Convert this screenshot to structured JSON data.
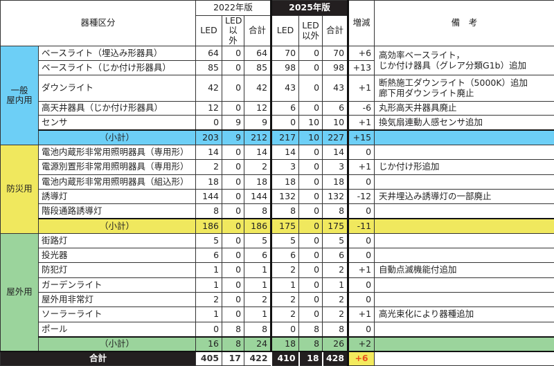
{
  "header": {
    "category": "器種区分",
    "year_2022": "2022年版",
    "year_2025": "2025年版",
    "led": "LED",
    "non_led": "LED\n以外",
    "total": "合計",
    "diff": "増減",
    "remarks": "備　考"
  },
  "colors": {
    "general": "#6dcff6",
    "disaster": "#f0e85e",
    "outdoor": "#9bd49c",
    "total_bg": "#231f20",
    "total_diff_bg": "#f3ea5d",
    "total_diff_text": "#e8501c"
  },
  "groups": [
    {
      "label": "一般\n屋内用",
      "color_key": "general",
      "rows": [
        {
          "name": "ベースライト（埋込み形器具）",
          "values": [
            64,
            0,
            64,
            70,
            0,
            70
          ],
          "diff": "+6",
          "remark": "高効率ベースライト，\nじか付け器具（グレア分類G1b）追加",
          "remark_rows": 2
        },
        {
          "name": "ベースライト（じか付け形器具）",
          "values": [
            85,
            0,
            85,
            98,
            0,
            98
          ],
          "diff": "+13"
        },
        {
          "name": "ダウンライト",
          "values": [
            42,
            0,
            42,
            43,
            0,
            43
          ],
          "diff": "+1",
          "remark": "断熱施工ダウンライト（5000K）追加\n廊下用ダウンライト廃止"
        },
        {
          "name": "高天井器具（じか付け形器具）",
          "values": [
            12,
            0,
            12,
            6,
            0,
            6
          ],
          "diff": "-6",
          "remark": "丸形高天井器具廃止"
        },
        {
          "name": "センサ",
          "values": [
            0,
            9,
            9,
            0,
            10,
            10
          ],
          "diff": "+1",
          "remark": "換気扇連動人感センサ追加"
        }
      ],
      "subtotal": {
        "label": "（小計）",
        "values": [
          203,
          9,
          212,
          217,
          10,
          227
        ],
        "diff": "+15"
      }
    },
    {
      "label": "防災用",
      "color_key": "disaster",
      "rows": [
        {
          "name": "電池内蔵形非常用照明器具（専用形）",
          "values": [
            14,
            0,
            14,
            14,
            0,
            14
          ],
          "diff": "0",
          "remark": ""
        },
        {
          "name": "電源別置形非常用照明器具（専用形）",
          "values": [
            2,
            0,
            2,
            3,
            0,
            3
          ],
          "diff": "+1",
          "remark": "じか付け形追加"
        },
        {
          "name": "電池内蔵形非常用照明器具（組込形）",
          "values": [
            18,
            0,
            18,
            18,
            0,
            18
          ],
          "diff": "0",
          "remark": ""
        },
        {
          "name": "誘導灯",
          "values": [
            144,
            0,
            144,
            132,
            0,
            132
          ],
          "diff": "-12",
          "remark": "天井埋込み誘導灯の一部廃止"
        },
        {
          "name": "階段通路誘導灯",
          "values": [
            8,
            0,
            8,
            8,
            0,
            8
          ],
          "diff": "0",
          "remark": ""
        }
      ],
      "subtotal": {
        "label": "（小計）",
        "values": [
          186,
          0,
          186,
          175,
          0,
          175
        ],
        "diff": "-11"
      }
    },
    {
      "label": "屋外用",
      "color_key": "outdoor",
      "rows": [
        {
          "name": "街路灯",
          "values": [
            5,
            0,
            5,
            5,
            0,
            5
          ],
          "diff": "0",
          "remark": ""
        },
        {
          "name": "投光器",
          "values": [
            6,
            0,
            6,
            6,
            0,
            6
          ],
          "diff": "0",
          "remark": ""
        },
        {
          "name": "防犯灯",
          "values": [
            1,
            0,
            1,
            2,
            0,
            2
          ],
          "diff": "+1",
          "remark": "自動点滅機能付追加"
        },
        {
          "name": "ガーデンライト",
          "values": [
            1,
            0,
            1,
            1,
            0,
            1
          ],
          "diff": "0",
          "remark": ""
        },
        {
          "name": "屋外用非常灯",
          "values": [
            2,
            0,
            2,
            2,
            0,
            2
          ],
          "diff": "0",
          "remark": ""
        },
        {
          "name": "ソーラーライト",
          "values": [
            1,
            0,
            1,
            2,
            0,
            2
          ],
          "diff": "+1",
          "remark": "高光束化により器種追加"
        },
        {
          "name": "ポール",
          "values": [
            0,
            8,
            8,
            0,
            8,
            8
          ],
          "diff": "0",
          "remark": ""
        }
      ],
      "subtotal": {
        "label": "（小計）",
        "values": [
          16,
          8,
          24,
          18,
          8,
          26
        ],
        "diff": "+2"
      }
    }
  ],
  "total": {
    "label": "合計",
    "values": [
      405,
      17,
      422,
      410,
      18,
      428
    ],
    "diff": "+6"
  }
}
